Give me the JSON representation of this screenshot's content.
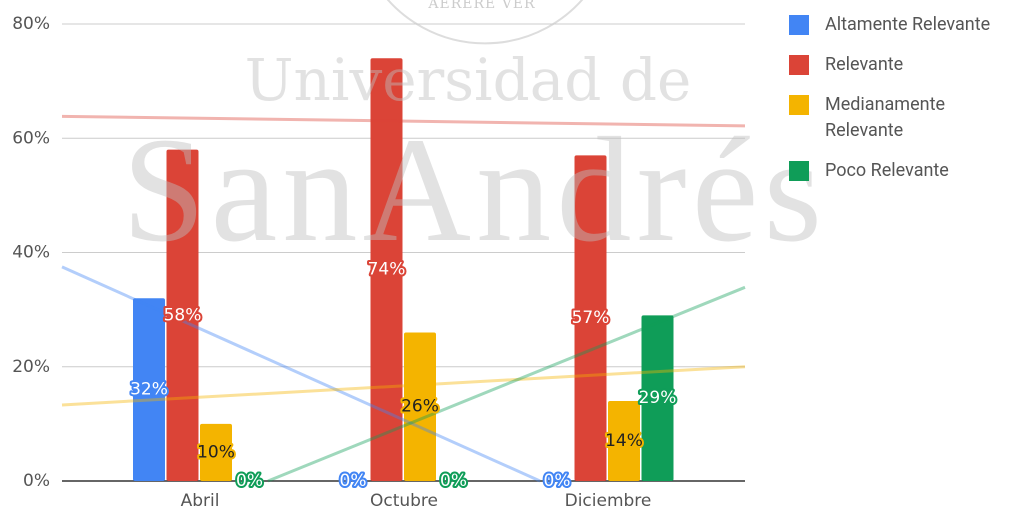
{
  "chart_data": {
    "type": "bar",
    "categories": [
      "Abril",
      "Octubre",
      "Diciembre"
    ],
    "series": [
      {
        "name": "Altamente Relevante",
        "color": "#4285f4",
        "values": [
          32,
          0,
          0
        ],
        "value_labels": [
          "32%",
          "0%",
          "0%"
        ]
      },
      {
        "name": "Relevante",
        "color": "#db4437",
        "values": [
          58,
          74,
          57
        ],
        "value_labels": [
          "58%",
          "74%",
          "57%"
        ]
      },
      {
        "name": "Medianamente Relevante",
        "color": "#f4b400",
        "values": [
          10,
          26,
          14
        ],
        "value_labels": [
          "10%",
          "26%",
          "14%"
        ]
      },
      {
        "name": "Poco Relevante",
        "color": "#0f9d58",
        "values": [
          0,
          0,
          29
        ],
        "value_labels": [
          "0%",
          "0%",
          "29%"
        ]
      }
    ],
    "ylim": [
      0,
      80
    ],
    "yticks": [
      {
        "value": 0,
        "label": "0%"
      },
      {
        "value": 20,
        "label": "20%"
      },
      {
        "value": 40,
        "label": "40%"
      },
      {
        "value": 60,
        "label": "60%"
      },
      {
        "value": 80,
        "label": "80%"
      }
    ],
    "grid": true,
    "trendlines": true,
    "legend": "right",
    "watermark": {
      "motto": "AERERE VER",
      "line1": "Universidad de",
      "line2": "SanAndrés"
    }
  }
}
